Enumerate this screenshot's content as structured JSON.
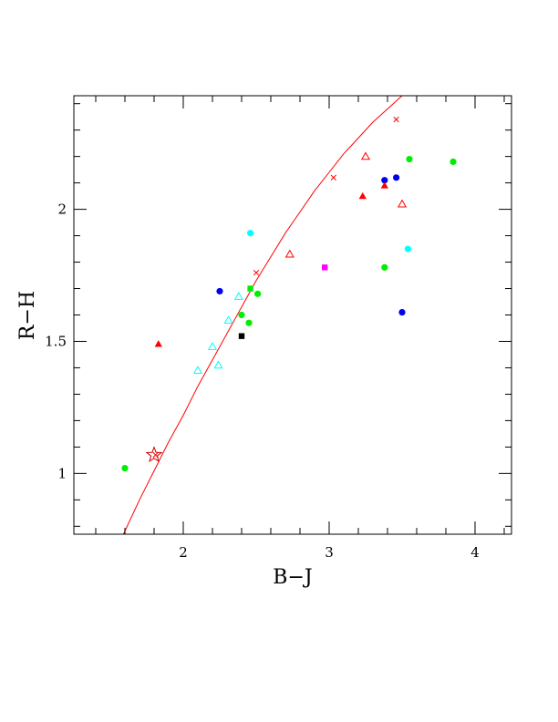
{
  "chart_data": {
    "type": "scatter",
    "xlabel": "B−J",
    "ylabel": "R−H",
    "xlim": [
      1.25,
      4.25
    ],
    "ylim": [
      0.77,
      2.43
    ],
    "xticks": [
      {
        "value": 2,
        "label": "2"
      },
      {
        "value": 3,
        "label": "3"
      },
      {
        "value": 4,
        "label": "4"
      }
    ],
    "yticks": [
      {
        "value": 1,
        "label": "1"
      },
      {
        "value": 1.5,
        "label": "1.5"
      },
      {
        "value": 2,
        "label": "2"
      }
    ],
    "grid": false,
    "curve": {
      "color": "#ff0000",
      "points": [
        [
          1.59,
          0.77
        ],
        [
          1.7,
          0.9
        ],
        [
          1.8,
          1.01
        ],
        [
          1.9,
          1.12
        ],
        [
          2.0,
          1.22
        ],
        [
          2.1,
          1.33
        ],
        [
          2.2,
          1.43
        ],
        [
          2.3,
          1.53
        ],
        [
          2.4,
          1.63
        ],
        [
          2.5,
          1.73
        ],
        [
          2.6,
          1.82
        ],
        [
          2.7,
          1.91
        ],
        [
          2.8,
          1.99
        ],
        [
          2.9,
          2.07
        ],
        [
          3.0,
          2.14
        ],
        [
          3.1,
          2.21
        ],
        [
          3.2,
          2.27
        ],
        [
          3.3,
          2.33
        ],
        [
          3.4,
          2.38
        ],
        [
          3.5,
          2.43
        ],
        [
          3.54,
          2.45
        ]
      ],
      "markers": [
        [
          1.81,
          1.07
        ],
        [
          2.5,
          1.76
        ],
        [
          3.03,
          2.12
        ],
        [
          3.46,
          2.34
        ]
      ]
    },
    "star": {
      "x": 1.8,
      "y": 1.07,
      "color": "#cc0000"
    },
    "series": [
      {
        "marker": "circle",
        "color": "#00ee00",
        "points": [
          [
            1.6,
            1.02
          ],
          [
            2.4,
            1.6
          ],
          [
            2.45,
            1.57
          ],
          [
            2.51,
            1.68
          ],
          [
            3.38,
            1.78
          ],
          [
            3.55,
            2.19
          ],
          [
            3.85,
            2.18
          ]
        ]
      },
      {
        "marker": "circle",
        "color": "#0000ee",
        "points": [
          [
            2.25,
            1.69
          ],
          [
            3.38,
            2.11
          ],
          [
            3.46,
            2.12
          ],
          [
            3.5,
            1.61
          ]
        ]
      },
      {
        "marker": "circle",
        "color": "#00ffff",
        "points": [
          [
            2.46,
            1.91
          ],
          [
            3.54,
            1.85
          ]
        ]
      },
      {
        "marker": "square",
        "color": "#000000",
        "points": [
          [
            2.4,
            1.52
          ]
        ]
      },
      {
        "marker": "square",
        "color": "#ff00ff",
        "points": [
          [
            2.97,
            1.78
          ]
        ]
      },
      {
        "marker": "square",
        "color": "#00ee00",
        "points": [
          [
            2.46,
            1.7
          ]
        ]
      },
      {
        "marker": "triangle-filled",
        "color": "#ff0000",
        "points": [
          [
            1.83,
            1.49
          ],
          [
            3.23,
            2.05
          ],
          [
            3.38,
            2.09
          ]
        ]
      },
      {
        "marker": "triangle-open",
        "color": "#ff0000",
        "points": [
          [
            2.73,
            1.83
          ],
          [
            3.25,
            2.2
          ],
          [
            3.5,
            2.02
          ]
        ]
      },
      {
        "marker": "triangle-open",
        "color": "#00ffff",
        "points": [
          [
            2.1,
            1.39
          ],
          [
            2.2,
            1.48
          ],
          [
            2.24,
            1.41
          ],
          [
            2.31,
            1.58
          ],
          [
            2.38,
            1.67
          ]
        ]
      }
    ]
  }
}
